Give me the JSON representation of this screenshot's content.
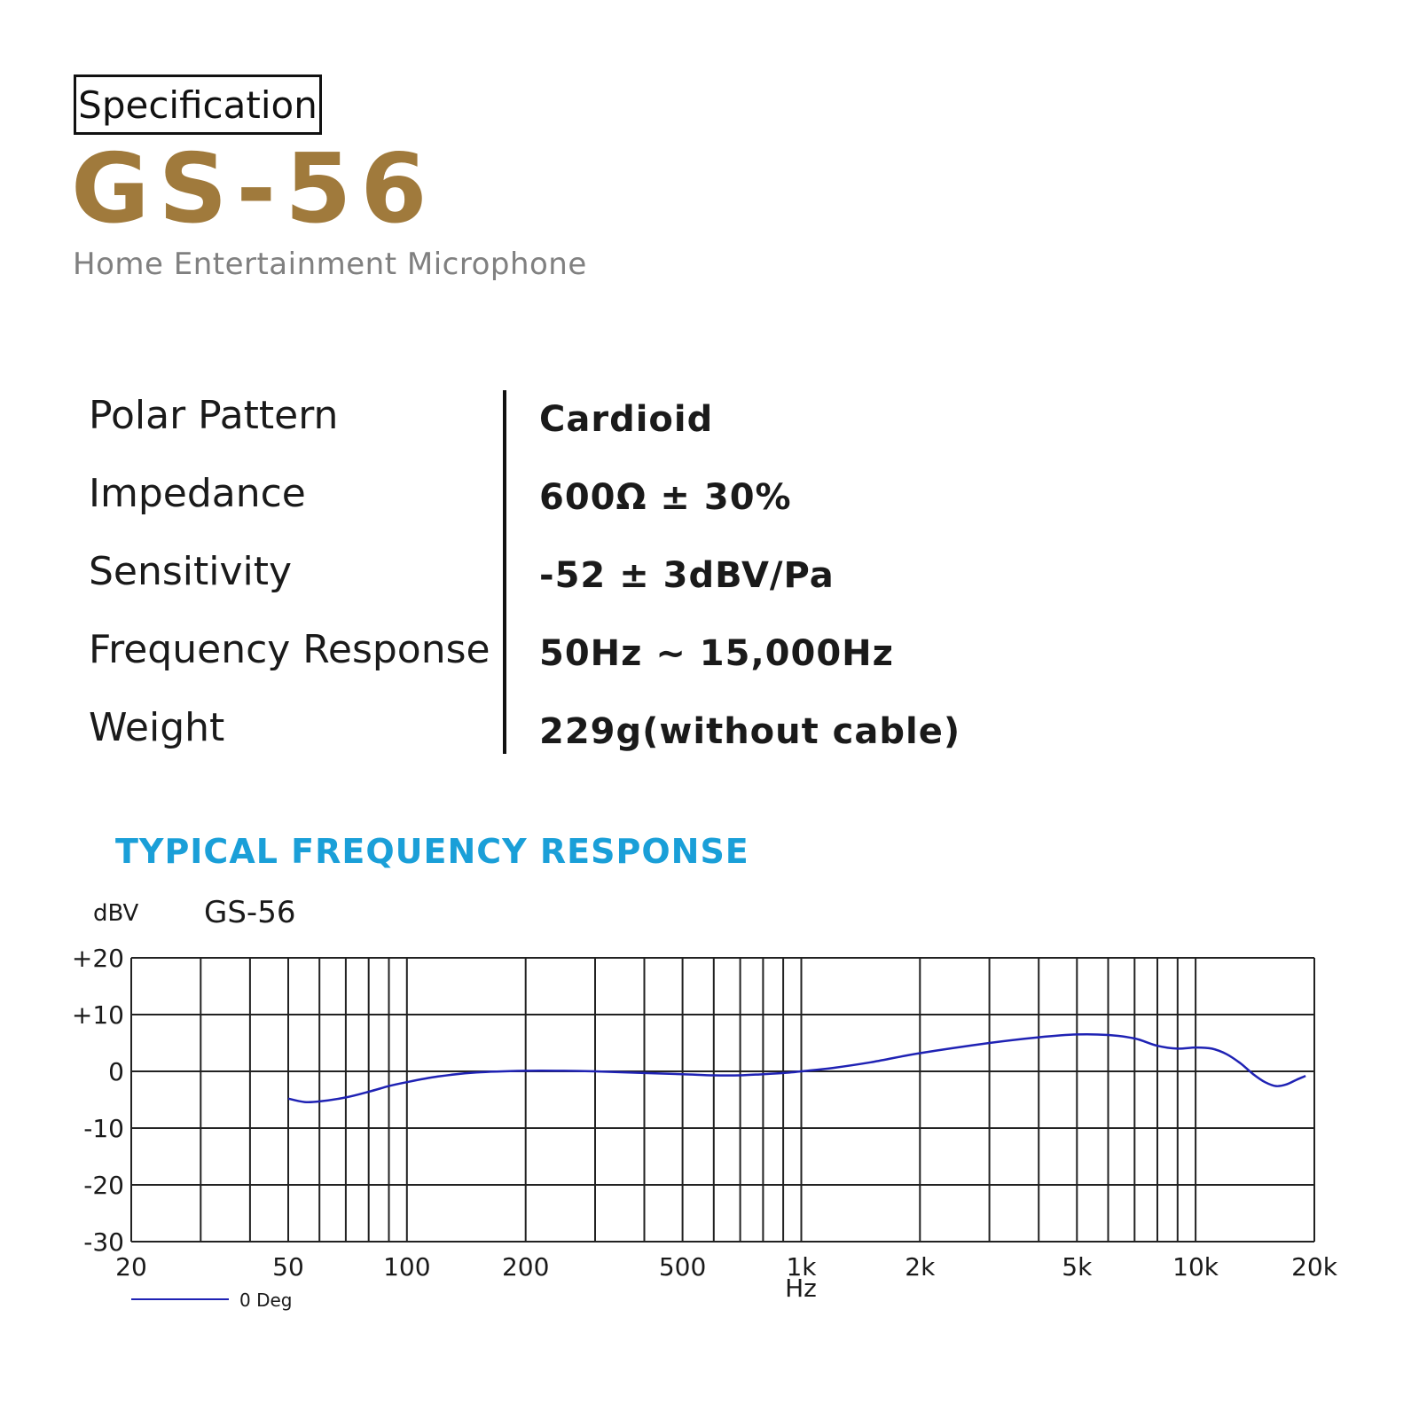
{
  "header": {
    "badge_label": "Specification",
    "model": "GS-56",
    "subtitle": "Home Entertainment Microphone"
  },
  "specs": [
    {
      "label": "Polar Pattern",
      "value": "Cardioid"
    },
    {
      "label": "Impedance",
      "value": "600Ω ± 30%"
    },
    {
      "label": "Sensitivity",
      "value": "-52 ± 3dBV/Pa"
    },
    {
      "label": "Frequency Response",
      "value": "50Hz ~ 15,000Hz"
    },
    {
      "label": "Weight",
      "value": "229g(without cable)"
    }
  ],
  "chart_data": {
    "type": "line",
    "heading": "TYPICAL FREQUENCY RESPONSE",
    "title": "GS-56",
    "ylabel": "dBV",
    "xlabel": "Hz",
    "x_scale": "log",
    "xlim": [
      20,
      20000
    ],
    "ylim": [
      -30,
      20
    ],
    "grid": true,
    "legend_position": "bottom-left",
    "x_tick_labels": [
      {
        "value": 20,
        "label": "20"
      },
      {
        "value": 50,
        "label": "50"
      },
      {
        "value": 100,
        "label": "100"
      },
      {
        "value": 200,
        "label": "200"
      },
      {
        "value": 500,
        "label": "500"
      },
      {
        "value": 1000,
        "label": "1k"
      },
      {
        "value": 2000,
        "label": "2k"
      },
      {
        "value": 5000,
        "label": "5k"
      },
      {
        "value": 10000,
        "label": "10k"
      },
      {
        "value": 20000,
        "label": "20k"
      }
    ],
    "x_gridlines": [
      20,
      30,
      40,
      50,
      60,
      70,
      80,
      90,
      100,
      200,
      300,
      400,
      500,
      600,
      700,
      800,
      900,
      1000,
      2000,
      3000,
      4000,
      5000,
      6000,
      7000,
      8000,
      9000,
      10000,
      20000
    ],
    "y_tick_labels": [
      {
        "value": 20,
        "label": "+20"
      },
      {
        "value": 10,
        "label": "+10"
      },
      {
        "value": 0,
        "label": "0"
      },
      {
        "value": -10,
        "label": "-10"
      },
      {
        "value": -20,
        "label": "-20"
      },
      {
        "value": -30,
        "label": "-30"
      }
    ],
    "series": [
      {
        "name": "0 Deg",
        "color": "#1f22b4",
        "points": [
          [
            50,
            -4.8
          ],
          [
            55,
            -5.4
          ],
          [
            60,
            -5.3
          ],
          [
            70,
            -4.6
          ],
          [
            80,
            -3.6
          ],
          [
            90,
            -2.6
          ],
          [
            100,
            -1.9
          ],
          [
            120,
            -0.9
          ],
          [
            150,
            -0.2
          ],
          [
            200,
            0.1
          ],
          [
            250,
            0.1
          ],
          [
            300,
            0.0
          ],
          [
            400,
            -0.3
          ],
          [
            500,
            -0.5
          ],
          [
            600,
            -0.7
          ],
          [
            700,
            -0.7
          ],
          [
            800,
            -0.5
          ],
          [
            900,
            -0.3
          ],
          [
            1000,
            0.0
          ],
          [
            1200,
            0.6
          ],
          [
            1500,
            1.6
          ],
          [
            2000,
            3.2
          ],
          [
            3000,
            5.0
          ],
          [
            4000,
            6.0
          ],
          [
            5000,
            6.5
          ],
          [
            6000,
            6.4
          ],
          [
            7000,
            5.8
          ],
          [
            8000,
            4.5
          ],
          [
            9000,
            4.0
          ],
          [
            10000,
            4.2
          ],
          [
            11000,
            4.0
          ],
          [
            12000,
            3.0
          ],
          [
            13000,
            1.4
          ],
          [
            14000,
            -0.5
          ],
          [
            15000,
            -1.9
          ],
          [
            16000,
            -2.6
          ],
          [
            17000,
            -2.3
          ],
          [
            18000,
            -1.5
          ],
          [
            19000,
            -0.8
          ]
        ]
      }
    ]
  }
}
